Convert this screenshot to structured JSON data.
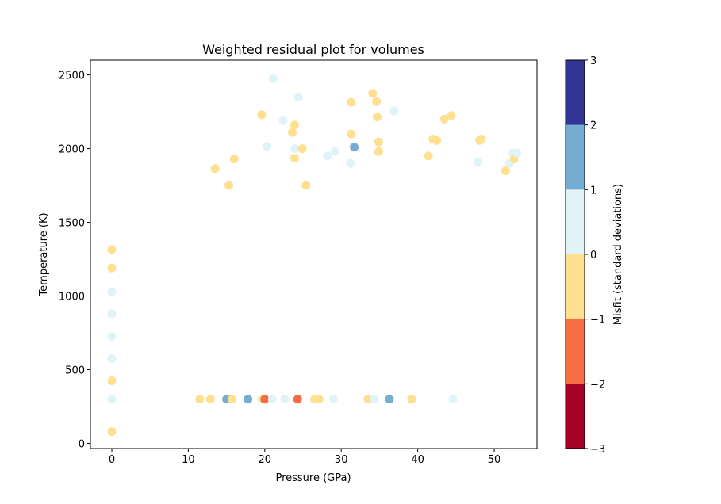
{
  "chart_data": {
    "type": "scatter",
    "title": "Weighted residual plot for volumes",
    "xlabel": "Pressure (GPa)",
    "ylabel": "Temperature (K)",
    "xlim": [
      -2.8,
      55.6
    ],
    "ylim": [
      -35,
      2600
    ],
    "xticks": [
      0,
      10,
      20,
      30,
      40,
      50
    ],
    "yticks": [
      0,
      500,
      1000,
      1500,
      2000,
      2500
    ],
    "grid": false,
    "colorbar": {
      "label": "Misfit (standard deviations)",
      "range": [
        -3,
        3
      ],
      "ticks": [
        -3,
        -2,
        -1,
        0,
        1,
        2,
        3
      ],
      "bins": [
        {
          "from": -3,
          "to": -2,
          "color": "#a50026"
        },
        {
          "from": -2,
          "to": -1,
          "color": "#f46d43"
        },
        {
          "from": -1,
          "to": 0,
          "color": "#fee090"
        },
        {
          "from": 0,
          "to": 1,
          "color": "#e0f3f8"
        },
        {
          "from": 1,
          "to": 2,
          "color": "#74add1"
        },
        {
          "from": 2,
          "to": 3,
          "color": "#313695"
        }
      ]
    },
    "points": [
      {
        "x": 0,
        "y": 80,
        "misfit": -0.5
      },
      {
        "x": 0,
        "y": 300,
        "misfit": 0.5
      },
      {
        "x": 0,
        "y": 425,
        "misfit": -0.5
      },
      {
        "x": 0,
        "y": 575,
        "misfit": 0.5
      },
      {
        "x": 0,
        "y": 725,
        "misfit": 0.5
      },
      {
        "x": 0,
        "y": 880,
        "misfit": 0.5
      },
      {
        "x": 0,
        "y": 1030,
        "misfit": 0.5
      },
      {
        "x": 0,
        "y": 1190,
        "misfit": -0.5
      },
      {
        "x": 0,
        "y": 1315,
        "misfit": -0.5
      },
      {
        "x": 11.5,
        "y": 300,
        "misfit": -0.5
      },
      {
        "x": 12.9,
        "y": 300,
        "misfit": -0.5
      },
      {
        "x": 15.0,
        "y": 300,
        "misfit": 1.5
      },
      {
        "x": 15.7,
        "y": 300,
        "misfit": -0.5
      },
      {
        "x": 17.8,
        "y": 300,
        "misfit": 1.5
      },
      {
        "x": 19.6,
        "y": 300,
        "misfit": 0.5
      },
      {
        "x": 19.7,
        "y": 300,
        "misfit": -0.5
      },
      {
        "x": 20.0,
        "y": 300,
        "misfit": -1.5
      },
      {
        "x": 21.0,
        "y": 300,
        "misfit": 0.5
      },
      {
        "x": 22.6,
        "y": 300,
        "misfit": 0.5
      },
      {
        "x": 24.3,
        "y": 300,
        "misfit": -1.5
      },
      {
        "x": 26.5,
        "y": 300,
        "misfit": -0.5
      },
      {
        "x": 27.1,
        "y": 300,
        "misfit": -0.5
      },
      {
        "x": 29.0,
        "y": 300,
        "misfit": 0.5
      },
      {
        "x": 33.5,
        "y": 300,
        "misfit": -0.5
      },
      {
        "x": 34.3,
        "y": 300,
        "misfit": 0.5
      },
      {
        "x": 36.3,
        "y": 300,
        "misfit": 1.5
      },
      {
        "x": 39.2,
        "y": 300,
        "misfit": -0.5
      },
      {
        "x": 44.6,
        "y": 300,
        "misfit": 0.5
      },
      {
        "x": 13.5,
        "y": 1865,
        "misfit": -0.5
      },
      {
        "x": 15.3,
        "y": 1750,
        "misfit": -0.5
      },
      {
        "x": 16.0,
        "y": 1930,
        "misfit": -0.5
      },
      {
        "x": 19.6,
        "y": 2230,
        "misfit": -0.5
      },
      {
        "x": 20.3,
        "y": 2015,
        "misfit": 0.5
      },
      {
        "x": 21.1,
        "y": 2475,
        "misfit": 0.5
      },
      {
        "x": 22.4,
        "y": 2190,
        "misfit": 0.5
      },
      {
        "x": 23.6,
        "y": 2110,
        "misfit": -0.5
      },
      {
        "x": 23.9,
        "y": 2160,
        "misfit": -0.5
      },
      {
        "x": 23.9,
        "y": 2000,
        "misfit": 0.5
      },
      {
        "x": 23.9,
        "y": 1935,
        "misfit": -0.5
      },
      {
        "x": 24.4,
        "y": 2350,
        "misfit": 0.5
      },
      {
        "x": 24.9,
        "y": 2000,
        "misfit": -0.5
      },
      {
        "x": 25.4,
        "y": 1750,
        "misfit": -0.5
      },
      {
        "x": 28.2,
        "y": 1950,
        "misfit": 0.5
      },
      {
        "x": 29.2,
        "y": 1980,
        "misfit": 0.5
      },
      {
        "x": 31.2,
        "y": 1900,
        "misfit": 0.5
      },
      {
        "x": 31.3,
        "y": 2315,
        "misfit": -0.5
      },
      {
        "x": 31.3,
        "y": 2100,
        "misfit": -0.5
      },
      {
        "x": 31.7,
        "y": 2010,
        "misfit": 1.5
      },
      {
        "x": 34.1,
        "y": 2375,
        "misfit": -0.5
      },
      {
        "x": 34.6,
        "y": 2320,
        "misfit": -0.5
      },
      {
        "x": 34.7,
        "y": 2215,
        "misfit": -0.5
      },
      {
        "x": 34.9,
        "y": 2045,
        "misfit": -0.5
      },
      {
        "x": 34.9,
        "y": 1980,
        "misfit": -0.5
      },
      {
        "x": 36.9,
        "y": 2255,
        "misfit": 0.5
      },
      {
        "x": 41.4,
        "y": 1950,
        "misfit": -0.5
      },
      {
        "x": 42.0,
        "y": 2065,
        "misfit": -0.5
      },
      {
        "x": 42.5,
        "y": 2055,
        "misfit": -0.5
      },
      {
        "x": 43.5,
        "y": 2200,
        "misfit": -0.5
      },
      {
        "x": 44.4,
        "y": 2225,
        "misfit": -0.5
      },
      {
        "x": 47.9,
        "y": 1910,
        "misfit": 0.5
      },
      {
        "x": 48.1,
        "y": 2055,
        "misfit": -0.5
      },
      {
        "x": 48.3,
        "y": 2065,
        "misfit": -0.5
      },
      {
        "x": 51.5,
        "y": 1850,
        "misfit": -0.5
      },
      {
        "x": 52.0,
        "y": 1900,
        "misfit": 0.5
      },
      {
        "x": 52.4,
        "y": 1970,
        "misfit": 0.5
      },
      {
        "x": 52.6,
        "y": 1930,
        "misfit": -0.5
      },
      {
        "x": 53.0,
        "y": 1970,
        "misfit": 0.5
      }
    ]
  }
}
